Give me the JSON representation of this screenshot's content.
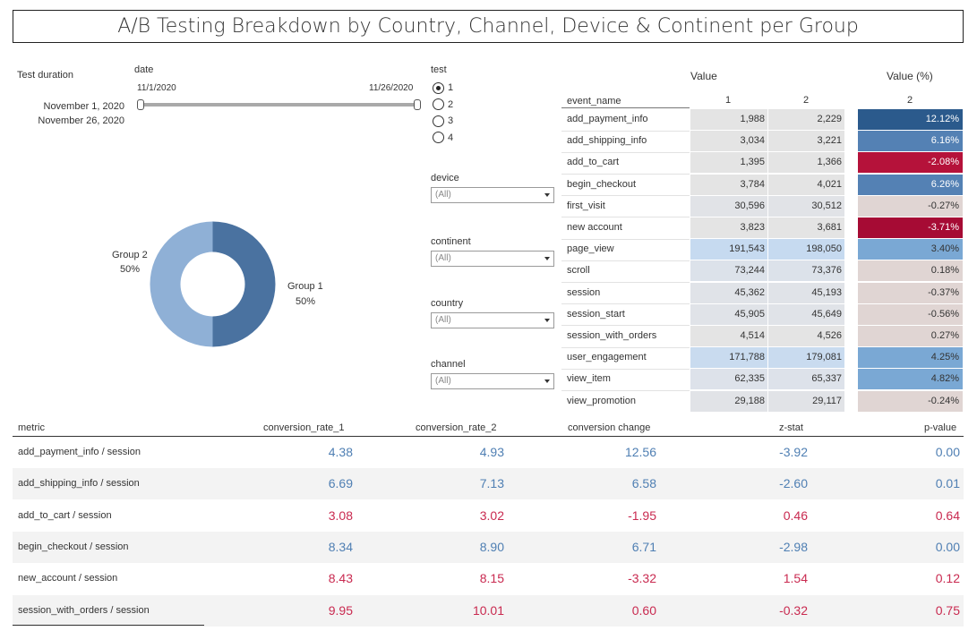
{
  "title": "A/B Testing Breakdown by Country, Channel, Device & Continent per Group",
  "filters": {
    "test_duration_label": "Test duration",
    "date_label": "date",
    "date_start_short": "11/1/2020",
    "date_end_short": "11/26/2020",
    "date_start_long": "November 1, 2020",
    "date_end_long": "November 26, 2020",
    "test_label": "test",
    "test_options": [
      "1",
      "2",
      "3",
      "4"
    ],
    "test_selected": "1",
    "device_label": "device",
    "device_value": "(All)",
    "continent_label": "continent",
    "continent_value": "(All)",
    "country_label": "country",
    "country_value": "(All)",
    "channel_label": "channel",
    "channel_value": "(All)"
  },
  "donut": {
    "group1_label": "Group 1",
    "group1_pct": "50%",
    "group2_label": "Group 2",
    "group2_pct": "50%",
    "colors": {
      "group1": "#4a72a0",
      "group2": "#8fb0d6"
    }
  },
  "event_table": {
    "value_header": "Value",
    "value_pct_header": "Value (%)",
    "event_name_header": "event_name",
    "col1": "1",
    "col2": "2",
    "col_pct": "2",
    "rows": [
      {
        "name": "add_payment_info",
        "v1": "1,988",
        "v2": "2,229",
        "pct": "12.12%",
        "pct_bg": "#2b5a8c",
        "pct_fg": "#ffffff",
        "val_bg": "#e4e4e4"
      },
      {
        "name": "add_shipping_info",
        "v1": "3,034",
        "v2": "3,221",
        "pct": "6.16%",
        "pct_bg": "#5481b4",
        "pct_fg": "#ffffff",
        "val_bg": "#e4e4e4"
      },
      {
        "name": "add_to_cart",
        "v1": "1,395",
        "v2": "1,366",
        "pct": "-2.08%",
        "pct_bg": "#b5123a",
        "pct_fg": "#ffffff",
        "val_bg": "#e4e4e4"
      },
      {
        "name": "begin_checkout",
        "v1": "3,784",
        "v2": "4,021",
        "pct": "6.26%",
        "pct_bg": "#5481b4",
        "pct_fg": "#ffffff",
        "val_bg": "#e4e4e4"
      },
      {
        "name": "first_visit",
        "v1": "30,596",
        "v2": "30,512",
        "pct": "-0.27%",
        "pct_bg": "#e0d5d3",
        "pct_fg": "#333333",
        "val_bg": "#e1e3e7"
      },
      {
        "name": "new account",
        "v1": "3,823",
        "v2": "3,681",
        "pct": "-3.71%",
        "pct_bg": "#a60b34",
        "pct_fg": "#ffffff",
        "val_bg": "#e4e4e4"
      },
      {
        "name": "page_view",
        "v1": "191,543",
        "v2": "198,050",
        "pct": "3.40%",
        "pct_bg": "#7aa8d4",
        "pct_fg": "#333333",
        "val_bg": "#c6daf0"
      },
      {
        "name": "scroll",
        "v1": "73,244",
        "v2": "73,376",
        "pct": "0.18%",
        "pct_bg": "#e0d5d3",
        "pct_fg": "#333333",
        "val_bg": "#dce2ea"
      },
      {
        "name": "session",
        "v1": "45,362",
        "v2": "45,193",
        "pct": "-0.37%",
        "pct_bg": "#e0d5d3",
        "pct_fg": "#333333",
        "val_bg": "#e0e3e8"
      },
      {
        "name": "session_start",
        "v1": "45,905",
        "v2": "45,649",
        "pct": "-0.56%",
        "pct_bg": "#e0d5d3",
        "pct_fg": "#333333",
        "val_bg": "#e0e3e8"
      },
      {
        "name": "session_with_orders",
        "v1": "4,514",
        "v2": "4,526",
        "pct": "0.27%",
        "pct_bg": "#e0d5d3",
        "pct_fg": "#333333",
        "val_bg": "#e4e4e4"
      },
      {
        "name": "user_engagement",
        "v1": "171,788",
        "v2": "179,081",
        "pct": "4.25%",
        "pct_bg": "#7aa8d4",
        "pct_fg": "#333333",
        "val_bg": "#c9dbef"
      },
      {
        "name": "view_item",
        "v1": "62,335",
        "v2": "65,337",
        "pct": "4.82%",
        "pct_bg": "#7aa8d4",
        "pct_fg": "#333333",
        "val_bg": "#dde2ea"
      },
      {
        "name": "view_promotion",
        "v1": "29,188",
        "v2": "29,117",
        "pct": "-0.24%",
        "pct_bg": "#e0d5d3",
        "pct_fg": "#333333",
        "val_bg": "#e1e3e7"
      }
    ]
  },
  "metrics_table": {
    "headers": {
      "metric": "metric",
      "cr1": "conversion_rate_1",
      "cr2": "conversion_rate_2",
      "change": "conversion change",
      "z": "z-stat",
      "p": "p-value"
    },
    "colors": {
      "positive": "#4f7fb3",
      "negative": "#c92a50"
    },
    "rows": [
      {
        "metric": "add_payment_info / session",
        "cr1": "4.38",
        "cr2": "4.93",
        "change": "12.56",
        "z": "-3.92",
        "p": "0.00",
        "cr1_sign": "positive",
        "cr2_sign": "positive",
        "change_sign": "positive",
        "z_sign": "positive",
        "p_sign": "positive",
        "shaded": false
      },
      {
        "metric": "add_shipping_info / session",
        "cr1": "6.69",
        "cr2": "7.13",
        "change": "6.58",
        "z": "-2.60",
        "p": "0.01",
        "cr1_sign": "positive",
        "cr2_sign": "positive",
        "change_sign": "positive",
        "z_sign": "positive",
        "p_sign": "positive",
        "shaded": true
      },
      {
        "metric": "add_to_cart / session",
        "cr1": "3.08",
        "cr2": "3.02",
        "change": "-1.95",
        "z": "0.46",
        "p": "0.64",
        "cr1_sign": "negative",
        "cr2_sign": "negative",
        "change_sign": "negative",
        "z_sign": "negative",
        "p_sign": "negative",
        "shaded": false
      },
      {
        "metric": "begin_checkout / session",
        "cr1": "8.34",
        "cr2": "8.90",
        "change": "6.71",
        "z": "-2.98",
        "p": "0.00",
        "cr1_sign": "positive",
        "cr2_sign": "positive",
        "change_sign": "positive",
        "z_sign": "positive",
        "p_sign": "positive",
        "shaded": true
      },
      {
        "metric": "new_account / session",
        "cr1": "8.43",
        "cr2": "8.15",
        "change": "-3.32",
        "z": "1.54",
        "p": "0.12",
        "cr1_sign": "negative",
        "cr2_sign": "negative",
        "change_sign": "negative",
        "z_sign": "negative",
        "p_sign": "negative",
        "shaded": false
      },
      {
        "metric": "session_with_orders / session",
        "cr1": "9.95",
        "cr2": "10.01",
        "change": "0.60",
        "z": "-0.32",
        "p": "0.75",
        "cr1_sign": "negative",
        "cr2_sign": "negative",
        "change_sign": "negative",
        "z_sign": "negative",
        "p_sign": "negative",
        "shaded": true
      }
    ]
  }
}
